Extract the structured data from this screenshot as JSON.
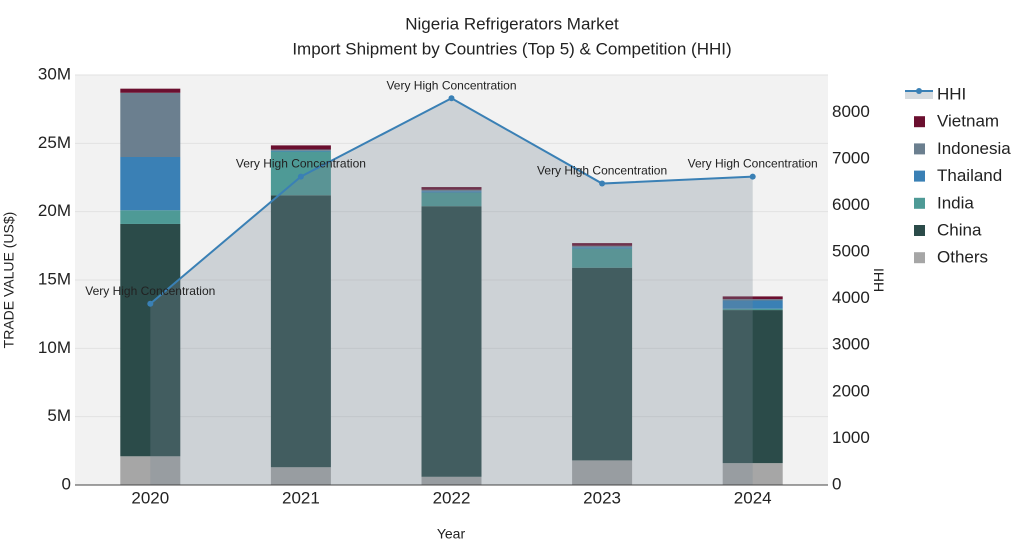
{
  "chart_data": {
    "type": "bar",
    "title": "Nigeria Refrigerators Market",
    "subtitle": "Import Shipment by Countries (Top 5) & Competition (HHI)",
    "x_label": "Year",
    "y_label": "TRADE VALUE (US$)",
    "y2_label": "HHI",
    "categories": [
      "2020",
      "2021",
      "2022",
      "2023",
      "2024"
    ],
    "series": [
      {
        "name": "Others",
        "color": "#a6a6a6",
        "values": [
          2100000,
          1300000,
          600000,
          1800000,
          1600000
        ]
      },
      {
        "name": "China",
        "color": "#2b4b49",
        "values": [
          17000000,
          19900000,
          19800000,
          14100000,
          11200000
        ]
      },
      {
        "name": "India",
        "color": "#4e9a96",
        "values": [
          1000000,
          3200000,
          1000000,
          1400000,
          100000
        ]
      },
      {
        "name": "Thailand",
        "color": "#3a80b5",
        "values": [
          3900000,
          50000,
          100000,
          100000,
          600000
        ]
      },
      {
        "name": "Indonesia",
        "color": "#6b7f8f",
        "values": [
          4700000,
          100000,
          100000,
          100000,
          100000
        ]
      },
      {
        "name": "Vietnam",
        "color": "#6b0f2f",
        "values": [
          300000,
          300000,
          200000,
          200000,
          200000
        ]
      },
      {
        "name": "HHI",
        "type": "line",
        "axis": "y2",
        "color": "#3a80b5",
        "values": [
          3890,
          6620,
          8300,
          6470,
          6620
        ],
        "annotations": [
          "Very High Concentration",
          "Very High Concentration",
          "Very High Concentration",
          "Very High Concentration",
          "Very High Concentration"
        ]
      }
    ],
    "ylim": [
      0,
      30000000
    ],
    "yticks": [
      0,
      {
        "value": 5000000,
        "label": "5M"
      },
      {
        "value": 10000000,
        "label": "10M"
      },
      {
        "value": 15000000,
        "label": "15M"
      },
      {
        "value": 20000000,
        "label": "20M"
      },
      {
        "value": 25000000,
        "label": "25M"
      },
      {
        "value": 30000000,
        "label": "30M"
      }
    ],
    "y2lim": [
      0,
      8800
    ],
    "y2ticks": [
      0,
      1000,
      2000,
      3000,
      4000,
      5000,
      6000,
      7000,
      8000
    ],
    "grid": true,
    "legend": "right"
  }
}
